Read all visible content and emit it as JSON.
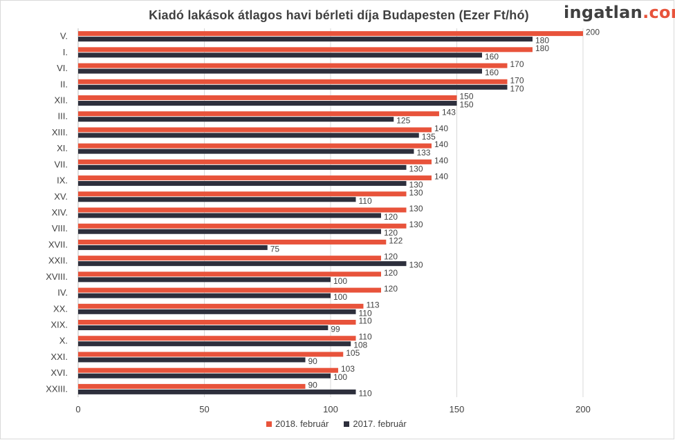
{
  "title": "Kiadó lakások átlagos havi bérleti díja Budapesten (Ezer Ft/hó)",
  "logo": {
    "part1": "ingatlan",
    "part2": ".com"
  },
  "colors": {
    "series_2018": "#e8533b",
    "series_2017": "#2d2f3c",
    "axis": "#bfbfbf",
    "grid": "#d9d9d9",
    "text": "#404040"
  },
  "chart_data": {
    "type": "bar",
    "orientation": "horizontal",
    "categories": [
      "V.",
      "I.",
      "VI.",
      "II.",
      "XII.",
      "III.",
      "XIII.",
      "XI.",
      "VII.",
      "IX.",
      "XV.",
      "XIV.",
      "VIII.",
      "XVII.",
      "XXII.",
      "XVIII.",
      "IV.",
      "XX.",
      "XIX.",
      "X.",
      "XXI.",
      "XVI.",
      "XXIII."
    ],
    "series": [
      {
        "name": "2018. február",
        "values": [
          200,
          180,
          170,
          170,
          150,
          143,
          140,
          140,
          140,
          140,
          130,
          130,
          130,
          122,
          120,
          120,
          120,
          113,
          110,
          110,
          105,
          103,
          90
        ]
      },
      {
        "name": "2017. február",
        "values": [
          180,
          160,
          160,
          170,
          150,
          125,
          135,
          133,
          130,
          130,
          110,
          120,
          120,
          75,
          130,
          100,
          100,
          110,
          99,
          108,
          90,
          100,
          110
        ]
      }
    ],
    "xlim": [
      0,
      200
    ],
    "xticks": [
      0,
      50,
      100,
      150,
      200
    ],
    "grid": true,
    "legend_position": "bottom"
  }
}
